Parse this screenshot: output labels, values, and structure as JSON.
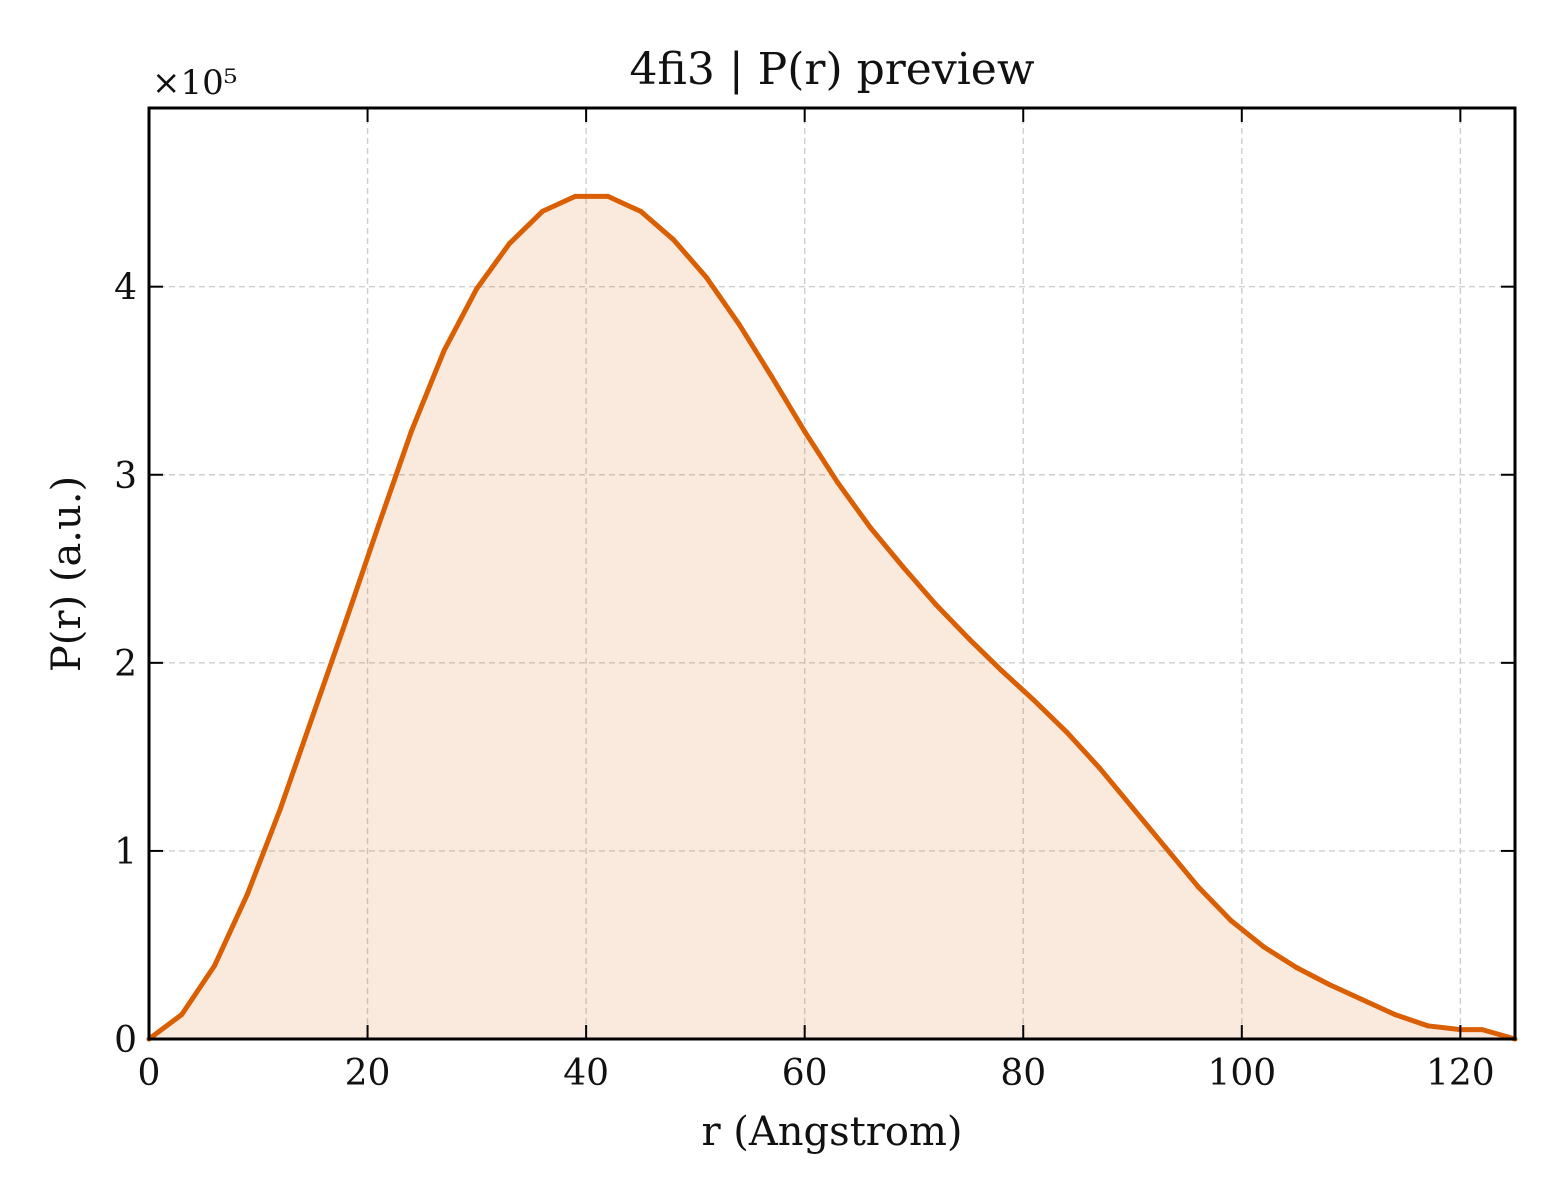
{
  "chart_data": {
    "type": "area",
    "title": "4fi3 | P(r) preview",
    "xlabel": "r (Angstrom)",
    "ylabel": "P(r) (a.u.)",
    "y_scale_label": "×10⁵",
    "y_scale": 100000,
    "xlim": [
      0,
      125
    ],
    "ylim": [
      0,
      4.95
    ],
    "xticks": [
      0,
      20,
      40,
      60,
      80,
      100,
      120
    ],
    "yticks": [
      0,
      1,
      2,
      3,
      4
    ],
    "grid": true,
    "colors": {
      "line": "#d95f02",
      "fill": "#d95f02"
    },
    "series": [
      {
        "x": [
          0,
          3,
          6,
          9,
          12,
          15,
          18,
          21,
          24,
          27,
          30,
          33,
          36,
          39,
          42,
          45,
          48,
          51,
          54,
          57,
          60,
          63,
          66,
          69,
          72,
          75,
          78,
          81,
          84,
          87,
          90,
          93,
          96,
          99,
          102,
          105,
          108,
          111,
          114,
          117,
          120,
          122,
          125
        ],
        "y": [
          0.0,
          0.13,
          0.39,
          0.77,
          1.22,
          1.72,
          2.22,
          2.73,
          3.23,
          3.66,
          3.99,
          4.23,
          4.4,
          4.48,
          4.48,
          4.4,
          4.25,
          4.05,
          3.8,
          3.52,
          3.23,
          2.96,
          2.72,
          2.51,
          2.31,
          2.13,
          1.96,
          1.8,
          1.63,
          1.44,
          1.23,
          1.02,
          0.81,
          0.63,
          0.49,
          0.38,
          0.29,
          0.21,
          0.13,
          0.07,
          0.05,
          0.05,
          0.0
        ]
      }
    ]
  }
}
